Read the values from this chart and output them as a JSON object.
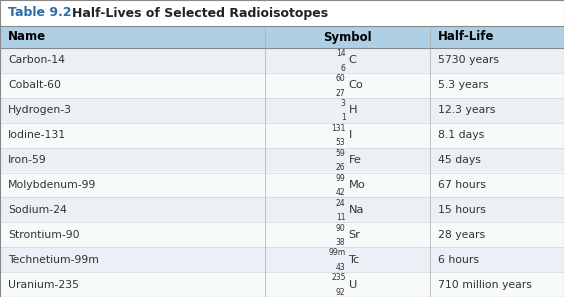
{
  "title_prefix": "Table 9.2",
  "title_text": "Half-Lives of Selected Radioisotopes",
  "title_color": "#2E6DA4",
  "header_bg": "#AECFE4",
  "row_bg_odd": "#EAF0F5",
  "row_bg_even": "#F7FAFB",
  "header_text_color": "#000000",
  "body_text_color": "#333333",
  "col_headers": [
    "Name",
    "Symbol",
    "Half-Life"
  ],
  "rows": [
    {
      "name": "Carbon-14",
      "mass": "14",
      "atomic": "6",
      "elem": "C",
      "halflife": "5730 years"
    },
    {
      "name": "Cobalt-60",
      "mass": "60",
      "atomic": "27",
      "elem": "Co",
      "halflife": "5.3 years"
    },
    {
      "name": "Hydrogen-3",
      "mass": "3",
      "atomic": "1",
      "elem": "H",
      "halflife": "12.3 years"
    },
    {
      "name": "Iodine-131",
      "mass": "131",
      "atomic": "53",
      "elem": "I",
      "halflife": "8.1 days"
    },
    {
      "name": "Iron-59",
      "mass": "59",
      "atomic": "26",
      "elem": "Fe",
      "halflife": "45 days"
    },
    {
      "name": "Molybdenum-99",
      "mass": "99",
      "atomic": "42",
      "elem": "Mo",
      "halflife": "67 hours"
    },
    {
      "name": "Sodium-24",
      "mass": "24",
      "atomic": "11",
      "elem": "Na",
      "halflife": "15 hours"
    },
    {
      "name": "Strontium-90",
      "mass": "90",
      "atomic": "38",
      "elem": "Sr",
      "halflife": "28 years"
    },
    {
      "name": "Technetium-99m",
      "mass": "99m",
      "atomic": "43",
      "elem": "Tc",
      "halflife": "6 hours"
    },
    {
      "name": "Uranium-235",
      "mass": "235",
      "atomic": "92",
      "elem": "U",
      "halflife": "710 million years"
    }
  ]
}
